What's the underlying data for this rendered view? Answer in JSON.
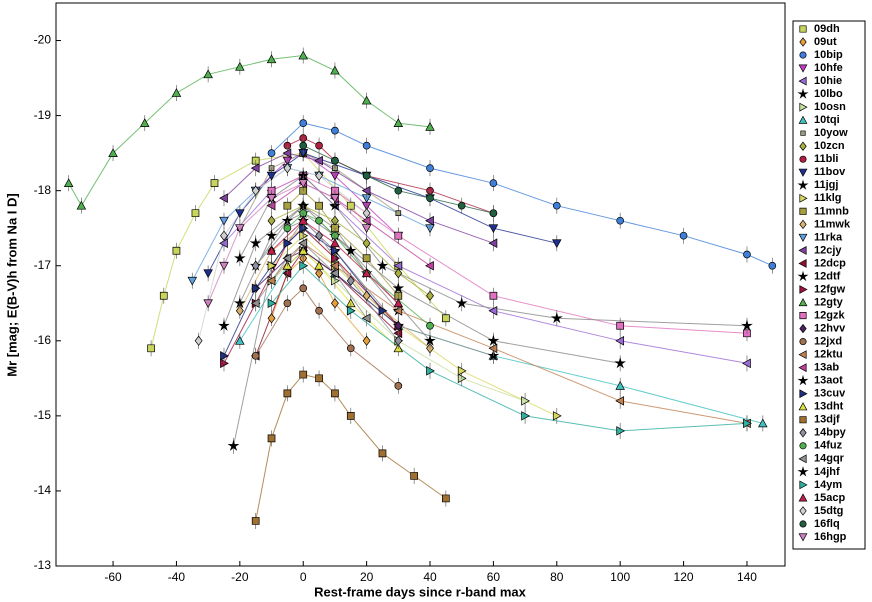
{
  "chart_data": {
    "type": "scatter",
    "xlabel": "Rest-frame days since r-band max",
    "ylabel": "Mr [mag; E(B-V)h from Na I D]",
    "xlim": [
      -78,
      152
    ],
    "ylim": [
      -13,
      -20.5
    ],
    "xticks": [
      -60,
      -40,
      -20,
      0,
      20,
      40,
      60,
      80,
      100,
      120,
      140
    ],
    "yticks": [
      -20,
      -19,
      -18,
      -17,
      -16,
      -15,
      -14,
      -13
    ],
    "grid": false,
    "legend": "right",
    "series": [
      {
        "name": "09dh",
        "color": "#c8d45a",
        "marker": "square",
        "x": [
          -48,
          -44,
          -40,
          -34,
          -28,
          -15,
          0,
          15,
          30,
          45
        ],
        "values": [
          -15.9,
          -16.6,
          -17.2,
          -17.7,
          -18.1,
          -18.4,
          -18.5,
          -17.8,
          -17.0,
          -16.3
        ]
      },
      {
        "name": "09ut",
        "color": "#e8a03c",
        "marker": "diamond",
        "x": [
          -10,
          -5,
          0,
          5,
          10,
          20
        ],
        "values": [
          -16.3,
          -16.9,
          -17.1,
          -16.9,
          -16.5,
          -16.0
        ]
      },
      {
        "name": "10bip",
        "color": "#3f7fd8",
        "marker": "circle",
        "x": [
          -10,
          0,
          10,
          20,
          40,
          60,
          80,
          100,
          120,
          140,
          148
        ],
        "values": [
          -18.5,
          -18.9,
          -18.8,
          -18.6,
          -18.3,
          -18.1,
          -17.8,
          -17.6,
          -17.4,
          -17.15,
          -17.0
        ]
      },
      {
        "name": "10hfe",
        "color": "#c43cc4",
        "marker": "v",
        "x": [
          -15,
          -5,
          0,
          10,
          20,
          30
        ],
        "values": [
          -18.0,
          -18.4,
          -18.5,
          -18.2,
          -17.8,
          -17.4
        ]
      },
      {
        "name": "10hie",
        "color": "#9b6ad6",
        "marker": "<",
        "x": [
          -25,
          -10,
          0,
          10,
          30,
          60,
          100,
          140
        ],
        "values": [
          -17.3,
          -18.0,
          -18.2,
          -17.8,
          -17.0,
          -16.4,
          -16.0,
          -15.7
        ]
      },
      {
        "name": "10lbo",
        "color": "#000000",
        "marker": "star",
        "x": [
          -20,
          -10,
          0,
          10,
          20,
          30
        ],
        "values": [
          -16.5,
          -17.4,
          -17.8,
          -17.5,
          -16.9,
          -16.4
        ]
      },
      {
        "name": "10osn",
        "color": "#c8e0a0",
        "marker": ">",
        "x": [
          -10,
          0,
          10,
          30,
          50,
          70
        ],
        "values": [
          -16.8,
          -17.2,
          -16.8,
          -16.0,
          -15.5,
          -15.2
        ]
      },
      {
        "name": "10tqi",
        "color": "#40c0c0",
        "marker": "^",
        "x": [
          -20,
          -5,
          0,
          10,
          30,
          60,
          100,
          145
        ],
        "values": [
          -16.0,
          -17.0,
          -17.2,
          -16.9,
          -16.2,
          -15.8,
          -15.4,
          -14.9
        ]
      },
      {
        "name": "10yow",
        "color": "#a0a080",
        "marker": "smallsquare",
        "x": [
          -20,
          -10,
          0,
          10,
          30
        ],
        "values": [
          -17.5,
          -18.3,
          -18.5,
          -18.3,
          -17.7
        ]
      },
      {
        "name": "10zcn",
        "color": "#a8b040",
        "marker": "diamond",
        "x": [
          -10,
          0,
          10,
          20,
          30,
          40
        ],
        "values": [
          -17.6,
          -17.8,
          -17.6,
          -17.3,
          -16.9,
          -16.6
        ]
      },
      {
        "name": "11bli",
        "color": "#b02040",
        "marker": "circle",
        "x": [
          -5,
          0,
          5,
          10,
          20,
          40,
          60
        ],
        "values": [
          -18.6,
          -18.7,
          -18.6,
          -18.4,
          -18.2,
          -18.0,
          -17.7
        ]
      },
      {
        "name": "11bov",
        "color": "#203090",
        "marker": "v",
        "x": [
          -30,
          -20,
          -10,
          0,
          20,
          40,
          60,
          80
        ],
        "values": [
          -16.9,
          -17.7,
          -18.2,
          -18.5,
          -18.2,
          -17.9,
          -17.5,
          -17.3
        ]
      },
      {
        "name": "11jgj",
        "color": "#000000",
        "marker": "star",
        "x": [
          -22,
          -10,
          0,
          10,
          30,
          60
        ],
        "values": [
          -14.6,
          -17.0,
          -17.6,
          -17.2,
          -16.2,
          -15.8
        ]
      },
      {
        "name": "11klg",
        "color": "#d8d860",
        "marker": ">",
        "x": [
          -10,
          0,
          10,
          30,
          50,
          80
        ],
        "values": [
          -17.0,
          -17.4,
          -17.0,
          -16.2,
          -15.6,
          -15.0
        ]
      },
      {
        "name": "11mnb",
        "color": "#a8a040",
        "marker": "square",
        "x": [
          -5,
          0,
          5,
          10,
          20,
          30
        ],
        "values": [
          -17.8,
          -18.0,
          -17.8,
          -17.5,
          -17.1,
          -16.6
        ]
      },
      {
        "name": "11mwk",
        "color": "#d8b070",
        "marker": "diamond",
        "x": [
          -20,
          -10,
          0,
          10,
          20,
          40
        ],
        "values": [
          -16.4,
          -17.2,
          -17.5,
          -17.1,
          -16.6,
          -15.9
        ]
      },
      {
        "name": "11rka",
        "color": "#60a0e0",
        "marker": "v",
        "x": [
          -35,
          -25,
          -15,
          -5,
          5,
          20,
          40
        ],
        "values": [
          -16.8,
          -17.6,
          -18.0,
          -18.3,
          -18.2,
          -17.9,
          -17.5
        ]
      },
      {
        "name": "12cjy",
        "color": "#8040a0",
        "marker": "<",
        "x": [
          -25,
          -15,
          -5,
          5,
          20,
          40,
          60
        ],
        "values": [
          -17.9,
          -18.3,
          -18.5,
          -18.4,
          -18.0,
          -17.6,
          -17.3
        ]
      },
      {
        "name": "12dcp",
        "color": "#901030",
        "marker": "<",
        "x": [
          -15,
          -5,
          0,
          10,
          30
        ],
        "values": [
          -15.8,
          -16.9,
          -17.2,
          -16.9,
          -16.1
        ]
      },
      {
        "name": "12dtf",
        "color": "#000000",
        "marker": "star",
        "x": [
          -25,
          -15,
          0,
          15,
          40
        ],
        "values": [
          -16.2,
          -17.3,
          -17.8,
          -17.2,
          -16.0
        ]
      },
      {
        "name": "12fgw",
        "color": "#a01040",
        "marker": ">",
        "x": [
          -25,
          -15,
          -5,
          0,
          10,
          30
        ],
        "values": [
          -15.7,
          -16.5,
          -17.3,
          -17.5,
          -17.1,
          -16.2
        ]
      },
      {
        "name": "12gty",
        "color": "#50b050",
        "marker": "^",
        "x": [
          -74,
          -70,
          -60,
          -50,
          -40,
          -30,
          -20,
          -10,
          0,
          10,
          20,
          30,
          40
        ],
        "values": [
          -18.1,
          -17.8,
          -18.5,
          -18.9,
          -19.3,
          -19.55,
          -19.65,
          -19.75,
          -19.8,
          -19.6,
          -19.2,
          -18.9,
          -18.85
        ]
      },
      {
        "name": "12gzk",
        "color": "#e070c0",
        "marker": "square",
        "x": [
          -10,
          0,
          10,
          30,
          60,
          100,
          140
        ],
        "values": [
          -18.0,
          -18.2,
          -18.0,
          -17.4,
          -16.6,
          -16.2,
          -16.1
        ]
      },
      {
        "name": "12hvv",
        "color": "#502060",
        "marker": "diamond",
        "x": [
          -15,
          -5,
          0,
          10,
          30
        ],
        "values": [
          -16.7,
          -17.1,
          -17.2,
          -16.9,
          -16.2
        ]
      },
      {
        "name": "12jxd",
        "color": "#a07050",
        "marker": "circle",
        "x": [
          -15,
          -5,
          0,
          5,
          15,
          30
        ],
        "values": [
          -15.8,
          -16.5,
          -16.7,
          -16.4,
          -15.9,
          -15.4
        ]
      },
      {
        "name": "12ktu",
        "color": "#c08050",
        "marker": "<",
        "x": [
          -10,
          0,
          10,
          30,
          60,
          100,
          140
        ],
        "values": [
          -16.8,
          -17.3,
          -17.0,
          -16.4,
          -15.9,
          -15.2,
          -14.9
        ]
      },
      {
        "name": "13ab",
        "color": "#c040a0",
        "marker": "<",
        "x": [
          -10,
          0,
          10,
          20,
          40
        ],
        "values": [
          -17.8,
          -18.1,
          -17.9,
          -17.6,
          -17.0
        ]
      },
      {
        "name": "13aot",
        "color": "#000000",
        "marker": "star",
        "x": [
          -15,
          -5,
          0,
          10,
          30,
          60,
          100
        ],
        "values": [
          -17.0,
          -17.6,
          -17.7,
          -17.4,
          -16.7,
          -16.0,
          -15.7
        ]
      },
      {
        "name": "13cuv",
        "color": "#203080",
        "marker": ">",
        "x": [
          -25,
          -15,
          -5,
          0,
          10,
          25
        ],
        "values": [
          -15.8,
          -16.7,
          -17.3,
          -17.5,
          -17.2,
          -16.4
        ]
      },
      {
        "name": "13dht",
        "color": "#e0e040",
        "marker": "^",
        "x": [
          -5,
          0,
          5,
          15,
          30
        ],
        "values": [
          -17.0,
          -17.2,
          -17.0,
          -16.5,
          -15.9
        ]
      },
      {
        "name": "13djf",
        "color": "#a07030",
        "marker": "square",
        "x": [
          -15,
          -10,
          -5,
          0,
          5,
          10,
          15,
          25,
          35,
          45
        ],
        "values": [
          -13.6,
          -14.7,
          -15.3,
          -15.55,
          -15.5,
          -15.3,
          -15.0,
          -14.5,
          -14.2,
          -13.9
        ]
      },
      {
        "name": "14bpy",
        "color": "#9090a0",
        "marker": "diamond",
        "x": [
          -15,
          -5,
          0,
          5,
          15,
          30
        ],
        "values": [
          -17.0,
          -17.5,
          -17.6,
          -17.4,
          -16.8,
          -16.0
        ]
      },
      {
        "name": "14fuz",
        "color": "#50b050",
        "marker": "circle",
        "x": [
          -5,
          0,
          5,
          10,
          20,
          40
        ],
        "values": [
          -17.5,
          -17.7,
          -17.6,
          -17.4,
          -16.9,
          -16.2
        ]
      },
      {
        "name": "14gqr",
        "color": "#909090",
        "marker": "<",
        "x": [
          -15,
          -5,
          0,
          10,
          20
        ],
        "values": [
          -16.5,
          -17.1,
          -17.3,
          -16.9,
          -16.3
        ]
      },
      {
        "name": "14jhf",
        "color": "#000000",
        "marker": "star",
        "x": [
          -20,
          -10,
          0,
          10,
          25,
          50,
          80,
          140
        ],
        "values": [
          -17.1,
          -17.9,
          -18.2,
          -17.8,
          -17.0,
          -16.5,
          -16.3,
          -16.2
        ]
      },
      {
        "name": "14ym",
        "color": "#30b0a0",
        "marker": ">",
        "x": [
          -10,
          0,
          15,
          40,
          70,
          100,
          140
        ],
        "values": [
          -16.5,
          -17.0,
          -16.4,
          -15.6,
          -15.0,
          -14.8,
          -14.9
        ]
      },
      {
        "name": "15acp",
        "color": "#c02050",
        "marker": "^",
        "x": [
          -10,
          0,
          10,
          20,
          30
        ],
        "values": [
          -17.2,
          -17.6,
          -17.3,
          -16.9,
          -16.5
        ]
      },
      {
        "name": "15dtg",
        "color": "#d0d0d0",
        "marker": "diamond",
        "x": [
          -33,
          -25,
          -15,
          -5,
          5,
          20
        ],
        "values": [
          -16.0,
          -17.4,
          -18.0,
          -18.3,
          -18.2,
          -17.7
        ]
      },
      {
        "name": "16flq",
        "color": "#206040",
        "marker": "circle",
        "x": [
          0,
          10,
          20,
          30,
          40,
          50,
          60
        ],
        "values": [
          -18.6,
          -18.4,
          -18.2,
          -18.0,
          -17.9,
          -17.8,
          -17.7
        ]
      },
      {
        "name": "16hgp",
        "color": "#d080c0",
        "marker": "v",
        "x": [
          -30,
          -25,
          -20,
          -10,
          0,
          10,
          20
        ],
        "values": [
          -16.5,
          -17.0,
          -17.5,
          -17.9,
          -18.1,
          -17.9,
          -17.5
        ]
      }
    ]
  }
}
